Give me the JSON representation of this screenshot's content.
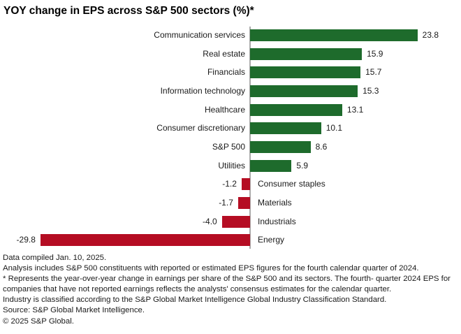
{
  "title": "YOY change in EPS across S&P 500 sectors (%)*",
  "chart_data": {
    "type": "bar",
    "orientation": "horizontal",
    "title": "YOY change in EPS across S&P 500 sectors (%)*",
    "categories": [
      "Communication services",
      "Real estate",
      "Financials",
      "Information technology",
      "Healthcare",
      "Consumer discretionary",
      "S&P 500",
      "Utilities",
      "Consumer staples",
      "Materials",
      "Industrials",
      "Energy"
    ],
    "values": [
      23.8,
      15.9,
      15.7,
      15.3,
      13.1,
      10.1,
      8.6,
      5.9,
      -1.2,
      -1.7,
      -4.0,
      -29.8
    ],
    "xlabel": "",
    "ylabel": "",
    "xlim": [
      -30,
      24
    ],
    "grid": false,
    "legend": false,
    "value_label_decimals": 1,
    "positive_color": "#1E6B2C",
    "negative_color": "#B50D23",
    "axis_line_color": "#ABABAB"
  },
  "footer": {
    "lines": [
      "Data compiled Jan. 10, 2025.",
      "Analysis includes S&P 500 constituents with reported or estimated EPS figures for the fourth calendar quarter of 2024.",
      "* Represents the year-over-year change in earnings per share of the S&P 500 and its sectors. The fourth- quarter 2024 EPS for companies that have not reported earnings reflects the analysts' consensus estimates for the calendar quarter.",
      "Industry is classified according to the S&P Global Market Intelligence Global Industry Classification Standard.",
      "Source: S&P Global Market Intelligence.",
      "© 2025 S&P Global."
    ]
  }
}
